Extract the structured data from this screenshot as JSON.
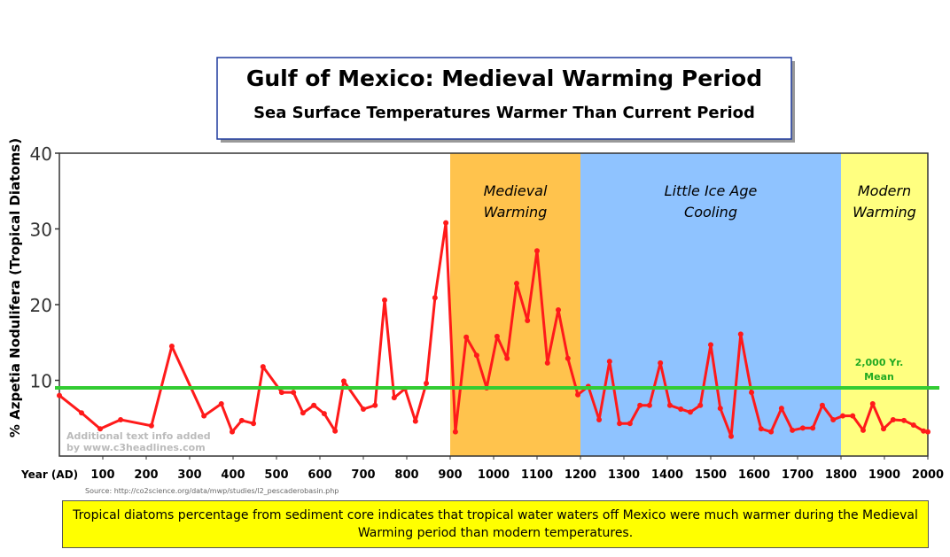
{
  "chart_data": {
    "type": "line",
    "title": "Gulf of Mexico: Medieval Warming Period",
    "subtitle": "Sea Surface Temperatures Warmer Than Current Period",
    "y_label": "% Azpetia Nodulifera (Tropical Diatoms)",
    "x_label": "Year (AD)",
    "source": "Source: http://co2science.org/data/mwp/studies/l2_pescaderobasin.php",
    "watermark": [
      "Additional text info added",
      "by www.c3headlines.com"
    ],
    "caption": "Tropical diatoms percentage from sediment core indicates that tropical water waters off Mexico were much warmer during the Medieval Warming period than modern temperatures.",
    "xlim": [
      0,
      2000
    ],
    "xticks": [
      100,
      200,
      300,
      400,
      500,
      600,
      700,
      800,
      900,
      1000,
      1100,
      1200,
      1300,
      1400,
      1500,
      1600,
      1700,
      1800,
      1900,
      2000
    ],
    "ylim": [
      0,
      40
    ],
    "yticks": [
      10,
      20,
      30,
      40
    ],
    "periods": [
      {
        "label_lines": [
          "Medieval",
          "Warming"
        ],
        "start": 900,
        "end": 1200,
        "color": "#ffc34d"
      },
      {
        "label_lines": [
          "Little Ice Age",
          "Cooling"
        ],
        "start": 1200,
        "end": 1800,
        "color": "#8fc3ff"
      },
      {
        "label_lines": [
          "Modern",
          "Warming"
        ],
        "start": 1800,
        "end": 2000,
        "color": "#ffff80"
      }
    ],
    "mean": {
      "value": 9,
      "label_lines": [
        "2,000 Yr.",
        "Mean"
      ],
      "color": "#33cc33"
    },
    "x": [
      0,
      51,
      94,
      141,
      212,
      259,
      333,
      373,
      398,
      420,
      447,
      469,
      512,
      539,
      561,
      586,
      610,
      635,
      655,
      700,
      727,
      749,
      771,
      796,
      820,
      845,
      865,
      890,
      912,
      937,
      961,
      984,
      1008,
      1031,
      1053,
      1078,
      1100,
      1124,
      1149,
      1171,
      1194,
      1218,
      1243,
      1267,
      1290,
      1314,
      1337,
      1359,
      1384,
      1406,
      1431,
      1453,
      1476,
      1500,
      1522,
      1547,
      1569,
      1594,
      1616,
      1639,
      1663,
      1688,
      1712,
      1735,
      1757,
      1782,
      1804,
      1827,
      1851,
      1873,
      1898,
      1920,
      1945,
      1967,
      1990,
      2000
    ],
    "series": [
      {
        "name": "Tropical diatoms",
        "color": "#ff1a1a",
        "values": [
          8,
          5.7,
          3.6,
          4.8,
          4.0,
          14.5,
          5.3,
          6.9,
          3.2,
          4.7,
          4.3,
          11.8,
          8.4,
          8.4,
          5.7,
          6.7,
          5.6,
          3.3,
          9.9,
          6.2,
          6.7,
          20.6,
          7.7,
          8.9,
          4.6,
          9.6,
          20.9,
          30.8,
          3.2,
          15.7,
          13.3,
          9.0,
          15.8,
          12.9,
          22.8,
          17.9,
          27.1,
          12.3,
          19.3,
          12.9,
          8.1,
          9.2,
          4.8,
          12.5,
          4.3,
          4.3,
          6.7,
          6.7,
          12.3,
          6.7,
          6.2,
          5.8,
          6.7,
          14.7,
          6.3,
          2.6,
          16.1,
          8.4,
          3.6,
          3.2,
          6.3,
          3.4,
          3.7,
          3.7,
          6.7,
          4.8,
          5.3,
          5.3,
          3.4,
          6.9,
          3.6,
          4.8,
          4.7,
          4.1,
          3.3,
          3.2
        ]
      }
    ]
  }
}
